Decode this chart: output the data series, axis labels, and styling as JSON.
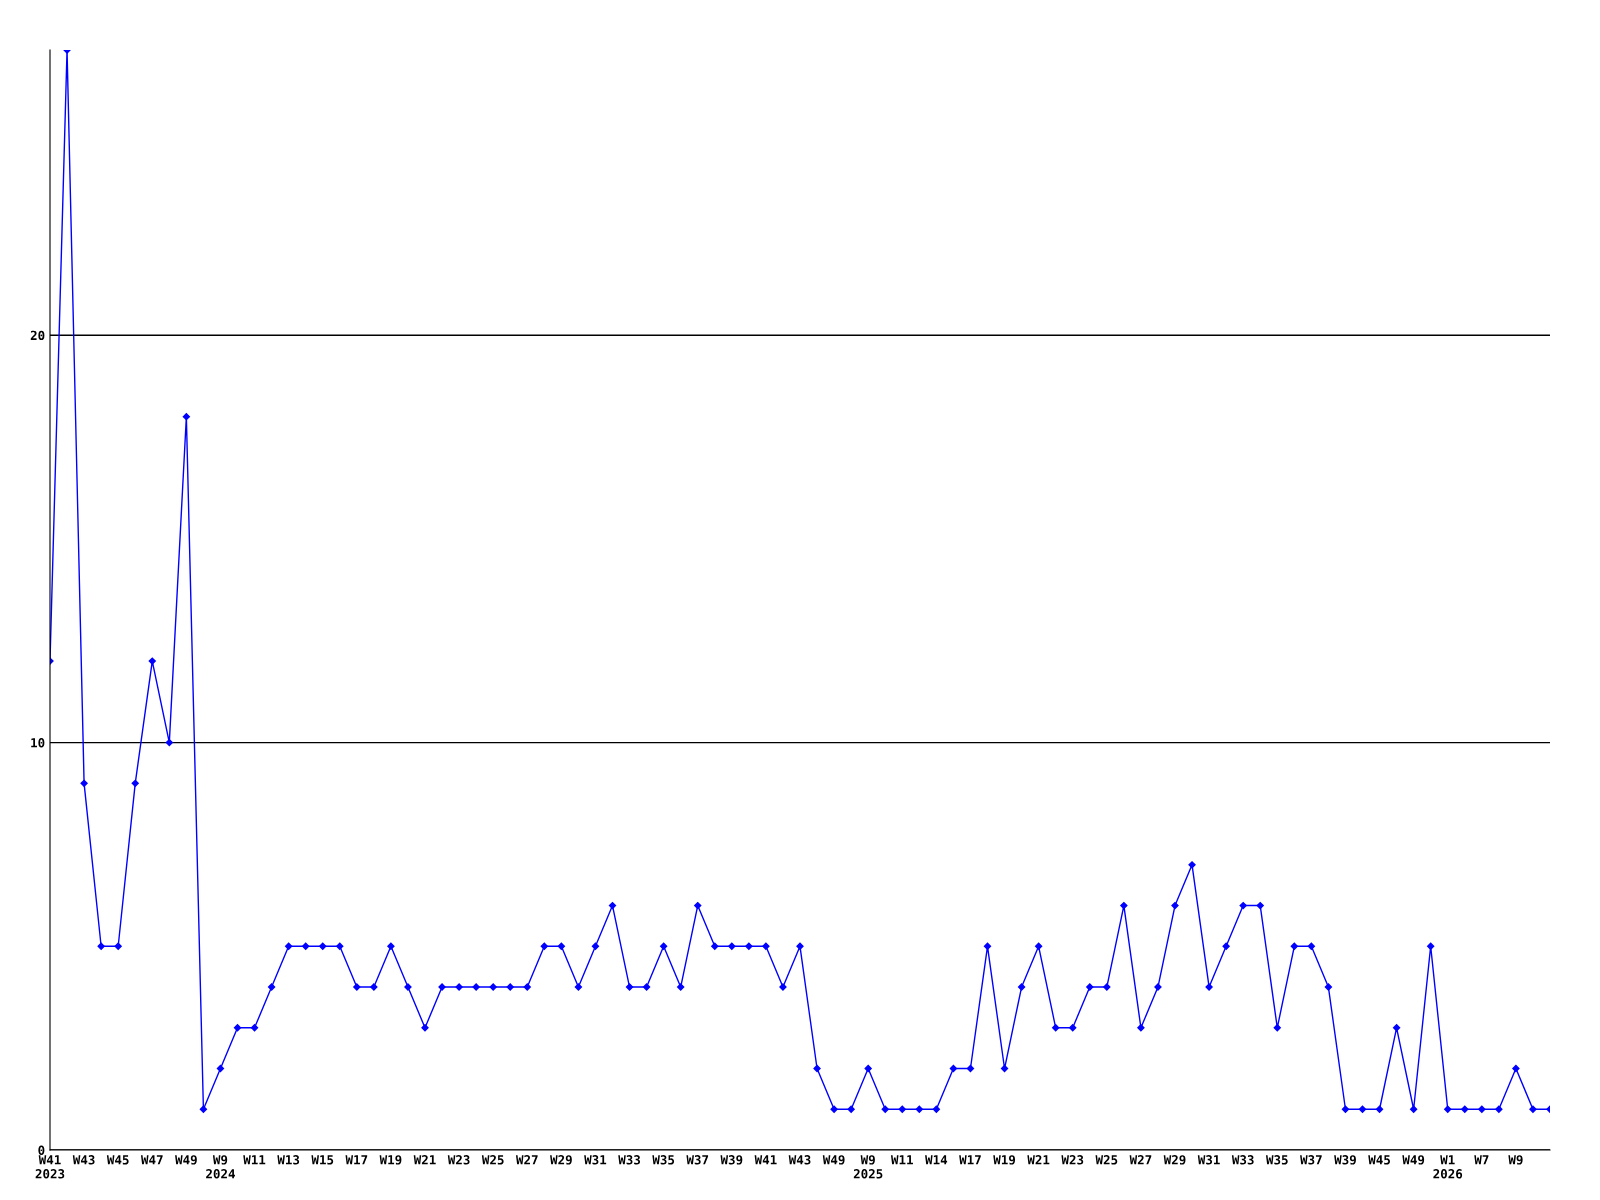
{
  "chart_data": {
    "type": "line",
    "categories": [
      "W41\n2023",
      null,
      "W43",
      null,
      "W45",
      null,
      "W47",
      null,
      "W49",
      null,
      "W9\n2024",
      null,
      "W11",
      null,
      "W13",
      null,
      "W15",
      null,
      "W17",
      null,
      "W19",
      null,
      "W21",
      null,
      "W23",
      null,
      "W25",
      null,
      "W27",
      null,
      "W29",
      null,
      "W31",
      null,
      "W33",
      null,
      "W35",
      null,
      "W37",
      null,
      "W39",
      null,
      "W41",
      null,
      "W43",
      null,
      "W49",
      null,
      "W9\n2025",
      null,
      "W11",
      null,
      "W14",
      null,
      "W17",
      null,
      "W19",
      null,
      "W21",
      null,
      "W23",
      null,
      "W25",
      null,
      "W27",
      null,
      "W29",
      null,
      "W31",
      null,
      "W33",
      null,
      "W35",
      null,
      "W37",
      null,
      "W39",
      null,
      "W45",
      null,
      "W49",
      null,
      "W1\n2026",
      null,
      "W7",
      null,
      "W9",
      null,
      null
    ],
    "series": [
      {
        "color": "#0000ff",
        "values": [
          12,
          27,
          9,
          5,
          5,
          9,
          12,
          10,
          18,
          1,
          2,
          3,
          3,
          4,
          5,
          5,
          5,
          5,
          4,
          4,
          5,
          4,
          3,
          4,
          4,
          4,
          4,
          4,
          4,
          5,
          5,
          4,
          5,
          6,
          4,
          4,
          5,
          4,
          6,
          5,
          5,
          5,
          5,
          4,
          5,
          2,
          1,
          1,
          2,
          1,
          1,
          1,
          1,
          2,
          2,
          5,
          2,
          4,
          5,
          3,
          3,
          4,
          4,
          6,
          3,
          4,
          6,
          7,
          4,
          5,
          6,
          6,
          3,
          5,
          5,
          4,
          1,
          1,
          1,
          3,
          1,
          5,
          1,
          1,
          1,
          1,
          2,
          1,
          1
        ]
      }
    ],
    "ylim": [
      0,
      27
    ],
    "yticks": [
      0,
      10,
      20
    ],
    "grid": "y",
    "marker": "diamond",
    "line_style": "solid"
  }
}
